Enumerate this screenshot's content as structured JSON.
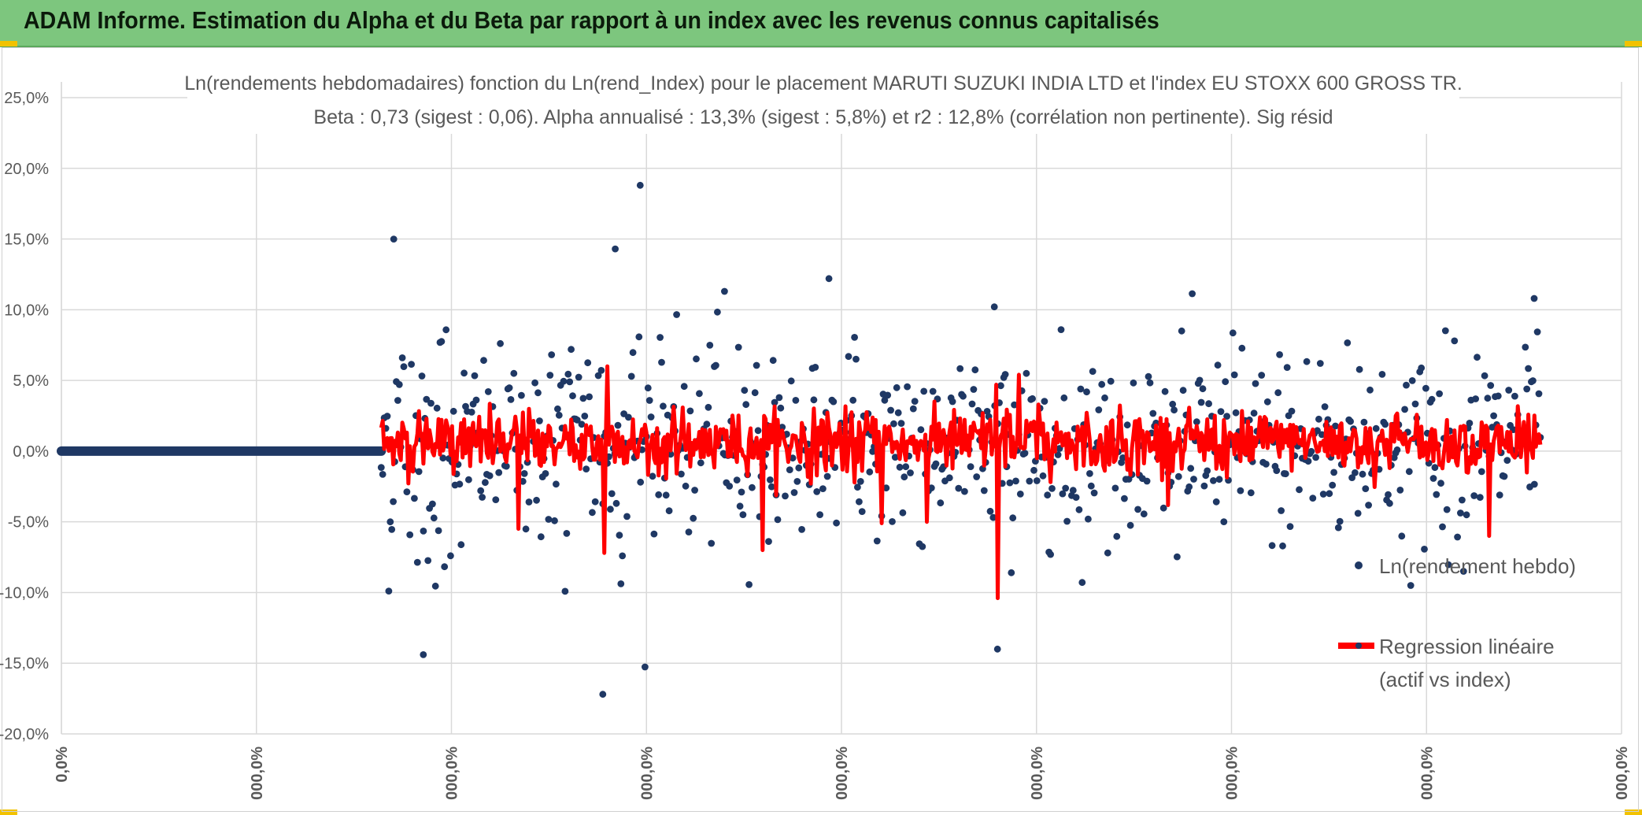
{
  "header": {
    "title": "ADAM Informe. Estimation du Alpha et du Beta par rapport à un index avec les revenus connus capitalisés"
  },
  "colors": {
    "title_bar": "#7dc67e",
    "corner_marks": "#f2c200",
    "scatter": "#1f3864",
    "regression": "#ff0000",
    "grid": "#d9d9d9"
  },
  "chart_data": {
    "type": "scatter",
    "title_line1": "Ln(rendements hebdomadaires) fonction du Ln(rend_Index) pour le placement MARUTI SUZUKI INDIA LTD et l'index EU STOXX 600 GROSS TR.",
    "title_line2": "Beta : 0,73 (sigest : 0,06). Alpha annualisé : 13,3% (sigest : 5,8%) et r2 : 12,8% (corrélation non pertinente). Sig résid",
    "y_ticks": [
      "25,0%",
      "20,0%",
      "15,0%",
      "10,0%",
      "5,0%",
      "0,0%",
      "-5,0%",
      "-10,0%",
      "-15,0%",
      "-20,0%"
    ],
    "x_ticks": [
      "0,0%",
      "000,0%",
      "000,0%",
      "000,0%",
      "000,0%",
      "000,0%",
      "000,0%",
      "000,0%",
      "000,0%"
    ],
    "ylim": [
      -0.2,
      0.25
    ],
    "xlim": [
      0,
      1
    ],
    "grid": true,
    "legend_position": "right",
    "series": [
      {
        "name": "Ln(rendement hebdo)",
        "kind": "markers"
      },
      {
        "name": "Regression linéaire (actif vs index)",
        "kind": "line",
        "legend_lines": [
          "Regression linéaire",
          "(actif vs index)"
        ]
      }
    ],
    "zero_segment": {
      "x_start": 0.0,
      "x_end": 0.205,
      "y": 0.0
    },
    "data_start_x": 0.205,
    "data_end_x": 0.948,
    "n_points": 770,
    "highlight_points": [
      {
        "x": 0.213,
        "y": 0.15
      },
      {
        "x": 0.371,
        "y": 0.188
      },
      {
        "x": 0.355,
        "y": 0.143
      },
      {
        "x": 0.347,
        "y": -0.172
      },
      {
        "x": 0.492,
        "y": 0.122
      },
      {
        "x": 0.6,
        "y": -0.14
      },
      {
        "x": 0.944,
        "y": 0.108
      },
      {
        "x": 0.232,
        "y": -0.144
      },
      {
        "x": 0.598,
        "y": 0.102
      },
      {
        "x": 0.425,
        "y": 0.113
      }
    ],
    "regression_spikes": [
      {
        "x": 0.35,
        "y": 0.06
      },
      {
        "x": 0.348,
        "y": -0.072
      },
      {
        "x": 0.449,
        "y": -0.07
      },
      {
        "x": 0.6,
        "y": -0.104
      },
      {
        "x": 0.599,
        "y": 0.047
      },
      {
        "x": 0.614,
        "y": 0.054
      },
      {
        "x": 0.915,
        "y": -0.06
      },
      {
        "x": 0.293,
        "y": -0.055
      },
      {
        "x": 0.526,
        "y": -0.051
      },
      {
        "x": 0.555,
        "y": -0.05
      }
    ]
  }
}
